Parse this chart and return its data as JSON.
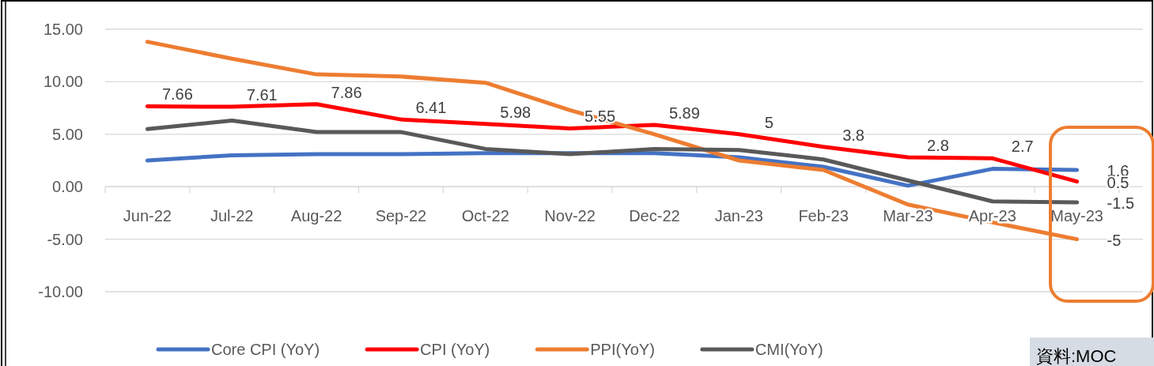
{
  "chart_data": {
    "type": "line",
    "categories": [
      "Jun-22",
      "Jul-22",
      "Aug-22",
      "Sep-22",
      "Oct-22",
      "Nov-22",
      "Dec-22",
      "Jan-23",
      "Feb-23",
      "Mar-23",
      "Apr-23",
      "May-23"
    ],
    "series": [
      {
        "name": "Core CPI (YoY)",
        "color": "#4472c4",
        "values": [
          2.5,
          3.0,
          3.1,
          3.1,
          3.2,
          3.2,
          3.2,
          2.8,
          1.9,
          0.1,
          1.7,
          1.6
        ],
        "value_labels": [
          null,
          null,
          null,
          null,
          null,
          null,
          null,
          null,
          null,
          null,
          null,
          "1.6"
        ]
      },
      {
        "name": "CPI (YoY)",
        "color": "#ff0000",
        "values": [
          7.66,
          7.61,
          7.86,
          6.41,
          5.98,
          5.55,
          5.89,
          5,
          3.8,
          2.8,
          2.7,
          0.5
        ],
        "value_labels": [
          "7.66",
          "7.61",
          "7.86",
          "6.41",
          "5.98",
          "5.55",
          "5.89",
          "5",
          "3.8",
          "2.8",
          "2.7",
          "0.5"
        ]
      },
      {
        "name": "PPI(YoY)",
        "color": "#ed7d31",
        "values": [
          13.8,
          12.2,
          10.7,
          10.5,
          9.9,
          7.3,
          5.0,
          2.5,
          1.6,
          -1.7,
          -3.4,
          -5
        ],
        "value_labels": [
          null,
          null,
          null,
          null,
          null,
          null,
          null,
          null,
          null,
          null,
          null,
          "-5"
        ]
      },
      {
        "name": "CMI(YoY)",
        "color": "#595959",
        "values": [
          5.5,
          6.3,
          5.2,
          5.2,
          3.6,
          3.1,
          3.6,
          3.5,
          2.6,
          0.6,
          -1.4,
          -1.5
        ],
        "value_labels": [
          null,
          null,
          null,
          null,
          null,
          null,
          null,
          null,
          null,
          null,
          null,
          "-1.5"
        ]
      }
    ],
    "ylim": [
      -10,
      15
    ],
    "yticks": [
      {
        "value": -10,
        "label": "-10.00"
      },
      {
        "value": -5,
        "label": "-5.00"
      },
      {
        "value": 0,
        "label": "0.00"
      },
      {
        "value": 5,
        "label": "5.00"
      },
      {
        "value": 10,
        "label": "10.00"
      },
      {
        "value": 15,
        "label": "15.00"
      }
    ],
    "grid": "y",
    "legend": "bottom",
    "marker": "none",
    "line_style": "solid",
    "annotations": [
      "資料:MOC"
    ]
  }
}
